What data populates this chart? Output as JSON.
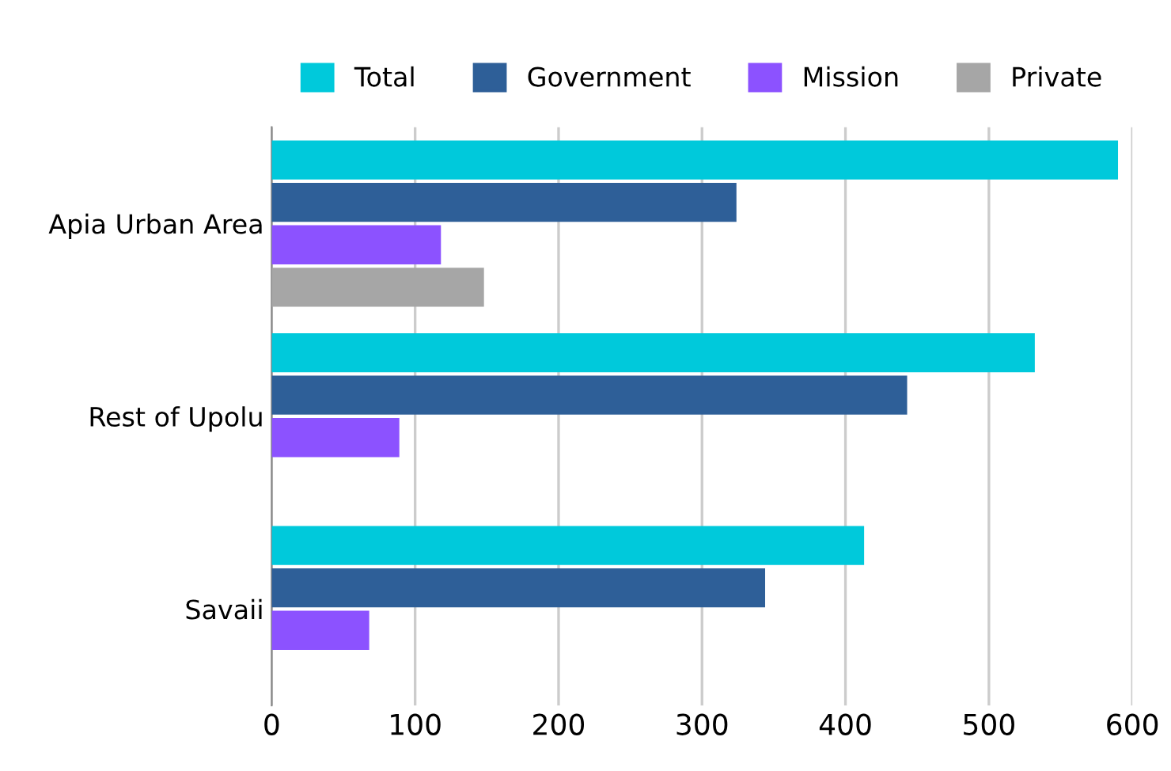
{
  "chart_data": {
    "type": "bar",
    "orientation": "horizontal",
    "categories": [
      "Apia Urban Area",
      "Rest of Upolu",
      "Savaii"
    ],
    "series": [
      {
        "name": "Total",
        "color": "#00c9db",
        "values": [
          590,
          532,
          413
        ]
      },
      {
        "name": "Government",
        "color": "#2e5f98",
        "values": [
          324,
          443,
          344
        ]
      },
      {
        "name": "Mission",
        "color": "#8c52ff",
        "values": [
          118,
          89,
          68
        ]
      },
      {
        "name": "Private",
        "color": "#a6a6a6",
        "values": [
          148,
          null,
          null
        ]
      }
    ],
    "xlim": [
      0,
      600
    ],
    "xticks": [
      0,
      100,
      200,
      300,
      400,
      500,
      600
    ],
    "grid": "x",
    "legend": "top"
  }
}
